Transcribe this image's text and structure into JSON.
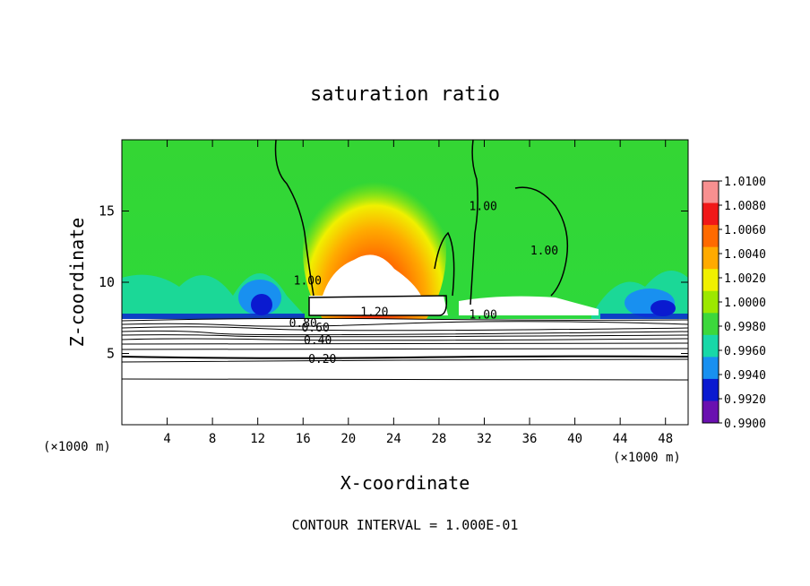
{
  "chart_data": {
    "type": "heatmap",
    "title": "saturation ratio",
    "xlabel": "X-coordinate",
    "ylabel": "Z-coordinate",
    "x_unit": "(×1000 m)",
    "x_unit_right": "(×1000 m)",
    "xlim": [
      0,
      50
    ],
    "ylim": [
      0,
      20
    ],
    "x_ticks": [
      4,
      8,
      12,
      16,
      20,
      24,
      28,
      32,
      36,
      40,
      44,
      48
    ],
    "y_ticks": [
      5,
      10,
      15
    ],
    "footer": "CONTOUR INTERVAL = 1.000E-01",
    "colorbar": {
      "ticks": [
        "1.0100",
        "1.0080",
        "1.0060",
        "1.0040",
        "1.0020",
        "1.0000",
        "0.9980",
        "0.9960",
        "0.9940",
        "0.9920",
        "0.9900"
      ],
      "colors": [
        "#f89090",
        "#f01818",
        "#ff6a00",
        "#ffaa00",
        "#f0f000",
        "#9ce800",
        "#3cd83c",
        "#18d8a8",
        "#1890f0",
        "#0a1ad0",
        "#6a10b0"
      ]
    },
    "contour_labels": [
      {
        "text": "1.20",
        "x": 22.3,
        "z": 7.9
      },
      {
        "text": "1.00",
        "x": 16.4,
        "z": 10.1
      },
      {
        "text": "1.00",
        "x": 31.9,
        "z": 15.3
      },
      {
        "text": "1.00",
        "x": 37.3,
        "z": 12.2
      },
      {
        "text": "1.00",
        "x": 31.9,
        "z": 7.7
      },
      {
        "text": "0.80",
        "x": 16.0,
        "z": 7.1
      },
      {
        "text": "0.60",
        "x": 17.1,
        "z": 6.8
      },
      {
        "text": "0.40",
        "x": 17.3,
        "z": 5.9
      },
      {
        "text": "0.20",
        "x": 17.7,
        "z": 4.6
      }
    ],
    "grid": false,
    "legend_placement": "right"
  }
}
